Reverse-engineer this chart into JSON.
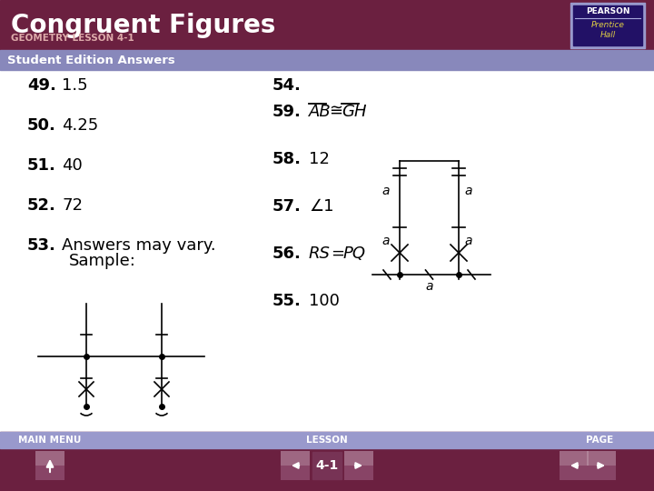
{
  "title": "Congruent Figures",
  "subtitle": "GEOMETRY LESSON 4-1",
  "section_label": "Student Edition Answers",
  "bg_color": "#ffffff",
  "header_bg": "#6b2040",
  "section_bg": "#8888bb",
  "footer_bg": "#6b2040",
  "footer_label_bg": "#9999cc",
  "title_color": "#ffffff",
  "subtitle_color": "#ddaaaa",
  "text_color": "#000000",
  "answer_font_size": 13,
  "pearson_box_color": "#3333aa",
  "nav_button_color": "#884466"
}
